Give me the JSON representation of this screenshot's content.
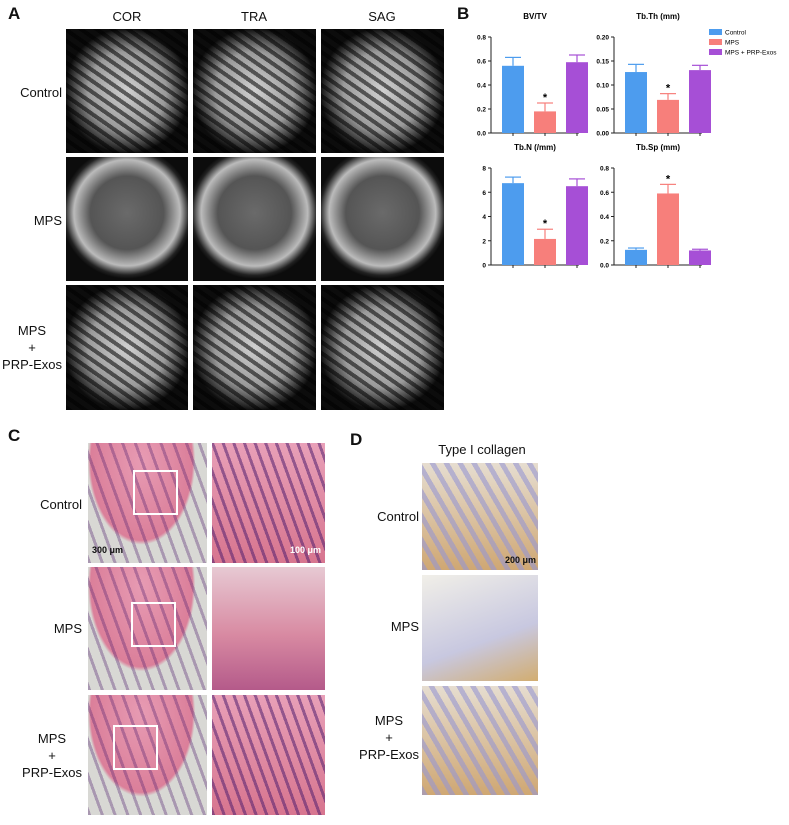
{
  "panels": {
    "a": {
      "label": "A",
      "columns": [
        "COR",
        "TRA",
        "SAG"
      ],
      "rows": [
        "Control",
        "MPS",
        "MPS\n+\nPRP-Exos"
      ]
    },
    "b": {
      "label": "B"
    },
    "c": {
      "label": "C",
      "rows": [
        "Control",
        "MPS",
        "MPS\n+\nPRP-Exos"
      ],
      "scale_bars": [
        "300 μm",
        "100 μm"
      ]
    },
    "d": {
      "label": "D",
      "title": "Type I collagen",
      "rows": [
        "Control",
        "MPS",
        "MPS\n+\nPRP-Exos"
      ],
      "scale_bar": "200 μm"
    }
  },
  "legend": [
    {
      "name": "Control",
      "color": "#4d9cee"
    },
    {
      "name": "MPS",
      "color": "#f77f7b"
    },
    {
      "name": "MPS + PRP-Exos",
      "color": "#a64fd6"
    }
  ],
  "chart_data": [
    {
      "type": "bar",
      "title": "BV/TV",
      "categories": [
        "Control",
        "MPS",
        "MPS + PRP-Exos"
      ],
      "values": [
        0.56,
        0.18,
        0.59
      ],
      "errors": [
        0.07,
        0.07,
        0.06
      ],
      "significance": [
        false,
        true,
        false
      ],
      "ylim": [
        0,
        0.8
      ],
      "yticks": [
        "0.0",
        "0.2",
        "0.4",
        "0.6",
        "0.8"
      ]
    },
    {
      "type": "bar",
      "title": "Tb.Th (mm)",
      "categories": [
        "Control",
        "MPS",
        "MPS + PRP-Exos"
      ],
      "values": [
        0.127,
        0.069,
        0.131
      ],
      "errors": [
        0.016,
        0.013,
        0.01
      ],
      "significance": [
        false,
        true,
        false
      ],
      "ylim": [
        0,
        0.2
      ],
      "yticks": [
        "0.00",
        "0.05",
        "0.10",
        "0.15",
        "0.20"
      ]
    },
    {
      "type": "bar",
      "title": "Tb.N (/mm)",
      "categories": [
        "Control",
        "MPS",
        "MPS + PRP-Exos"
      ],
      "values": [
        6.75,
        2.15,
        6.5
      ],
      "errors": [
        0.5,
        0.8,
        0.6
      ],
      "significance": [
        false,
        true,
        false
      ],
      "ylim": [
        0,
        8
      ],
      "yticks": [
        "0",
        "2",
        "4",
        "6",
        "8"
      ]
    },
    {
      "type": "bar",
      "title": "Tb.Sp (mm)",
      "categories": [
        "Control",
        "MPS",
        "MPS + PRP-Exos"
      ],
      "values": [
        0.125,
        0.59,
        0.12
      ],
      "errors": [
        0.015,
        0.075,
        0.01
      ],
      "significance": [
        false,
        true,
        false
      ],
      "ylim": [
        0,
        0.8
      ],
      "yticks": [
        "0.0",
        "0.2",
        "0.4",
        "0.6",
        "0.8"
      ]
    }
  ],
  "significance_mark": "*"
}
